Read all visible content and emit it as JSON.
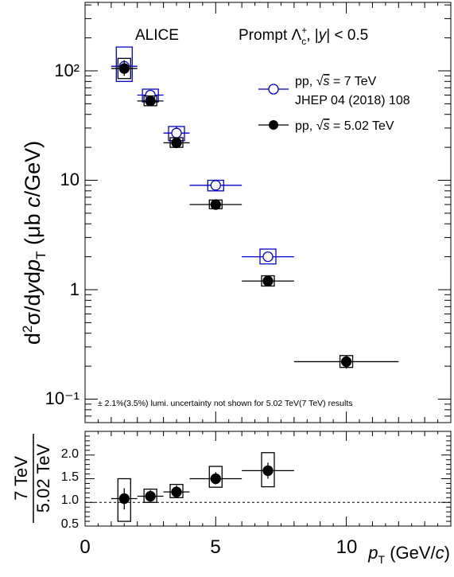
{
  "chart_data": [
    {
      "type": "scatter",
      "experiment_label": "ALICE",
      "annotation_main": "Prompt Λc+, |y| < 0.5",
      "annotation_lumi": "± 2.1%(3.5%) lumi. uncertainty not shown for 5.02 TeV(7 TeV) results",
      "ylabel": "d²σ/dydp_T (μb c/GeV)",
      "yscale": "log",
      "ylim": [
        0.05,
        400
      ],
      "xlim": [
        0,
        14
      ],
      "ytick_labels": [
        "10⁻¹",
        "1",
        "10",
        "10²"
      ],
      "legend_position": "top-right",
      "series": [
        {
          "name": "pp, √s = 7 TeV",
          "name_line2": "JHEP 04 (2018) 108",
          "color": "#0000cc",
          "marker": "open-circle",
          "x": [
            1.5,
            2.5,
            3.5,
            5.0,
            7.0
          ],
          "xerr": [
            0.5,
            0.5,
            0.5,
            1.0,
            1.0
          ],
          "y": [
            110,
            60,
            27,
            9.0,
            2.0
          ],
          "stat_lo": [
            95,
            55,
            24,
            8.4,
            1.8
          ],
          "stat_hi": [
            125,
            66,
            31,
            9.6,
            2.2
          ],
          "syst_lo": [
            80,
            52,
            23,
            8.0,
            1.72
          ],
          "syst_hi": [
            165,
            68,
            31,
            10.0,
            2.35
          ]
        },
        {
          "name": "pp, √s = 5.02 TeV",
          "color": "#000000",
          "marker": "filled-circle",
          "x": [
            1.5,
            2.5,
            3.5,
            5.0,
            7.0,
            10.0
          ],
          "xerr": [
            0.5,
            0.5,
            0.5,
            1.0,
            1.0,
            2.0
          ],
          "y": [
            105,
            53,
            22,
            6.0,
            1.2,
            0.22
          ],
          "stat_lo": [
            90,
            48,
            20,
            5.6,
            1.1,
            0.19
          ],
          "stat_hi": [
            125,
            58,
            24,
            6.4,
            1.3,
            0.25
          ],
          "syst_lo": [
            85,
            48,
            20,
            5.5,
            1.08,
            0.195
          ],
          "syst_hi": [
            130,
            59,
            24.5,
            6.6,
            1.34,
            0.25
          ]
        }
      ]
    },
    {
      "type": "scatter",
      "ylabel_num": "7 TeV",
      "ylabel_den": "5.02 TeV",
      "xlabel": "p_T (GeV/c)",
      "xlim": [
        0,
        14
      ],
      "ylim": [
        0.5,
        2.5
      ],
      "reference_line": 1.0,
      "xtick_labels": [
        "0",
        "5",
        "10"
      ],
      "ytick_labels": [
        "0.5",
        "1.0",
        "1.5",
        "2.0"
      ],
      "series": [
        {
          "name": "",
          "color": "#000000",
          "marker": "filled-circle",
          "x": [
            1.5,
            2.5,
            3.5,
            5.0,
            7.0
          ],
          "xerr": [
            0.5,
            0.5,
            0.5,
            1.0,
            1.0
          ],
          "y": [
            1.08,
            1.13,
            1.22,
            1.5,
            1.67
          ],
          "stat_lo": [
            0.85,
            1.0,
            1.1,
            1.38,
            1.5
          ],
          "stat_hi": [
            1.3,
            1.26,
            1.36,
            1.64,
            1.84
          ],
          "syst_lo": [
            0.6,
            1.0,
            1.1,
            1.32,
            1.33
          ],
          "syst_hi": [
            1.5,
            1.28,
            1.38,
            1.76,
            2.05
          ]
        }
      ]
    }
  ]
}
